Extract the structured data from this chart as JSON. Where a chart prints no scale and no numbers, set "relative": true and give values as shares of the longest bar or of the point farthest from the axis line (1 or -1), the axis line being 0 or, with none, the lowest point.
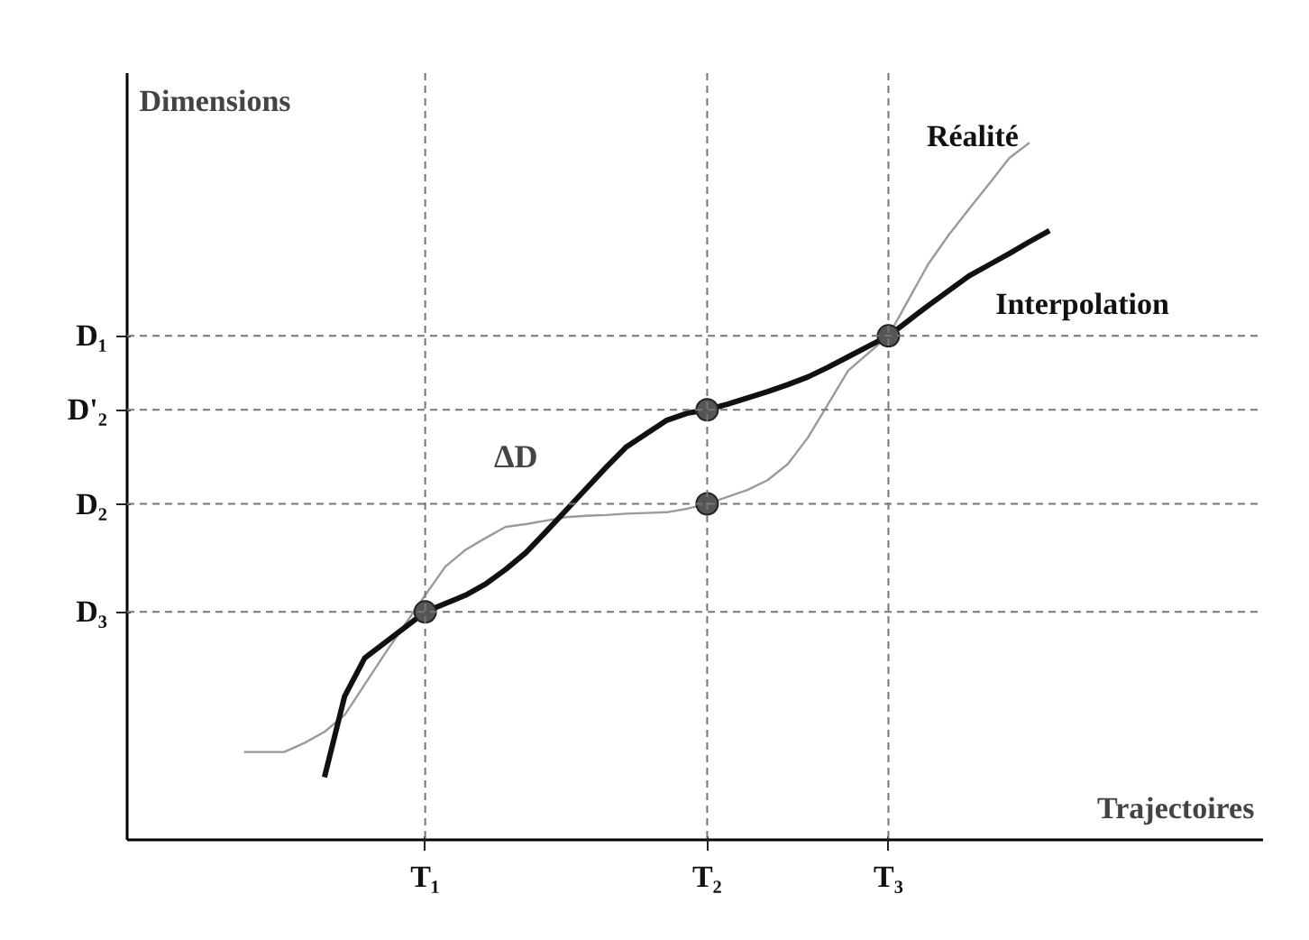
{
  "chart_data": {
    "type": "line",
    "relative": true,
    "xlabel": "Trajectoires",
    "ylabel": "Dimensions",
    "categories": [
      null,
      null,
      null,
      null,
      null,
      null,
      null,
      null,
      null,
      null,
      "T₁",
      null,
      null,
      null,
      null,
      null,
      null,
      null,
      null,
      null,
      null,
      null,
      null,
      null,
      "T₂",
      null,
      null,
      null,
      null,
      null,
      null,
      null,
      null,
      "T₃",
      null,
      null,
      null,
      null,
      null,
      null,
      null,
      null,
      null
    ],
    "series": [
      {
        "name": "Réalité",
        "color": "#9a9a9a",
        "values": [
          null,
          0.126,
          0.126,
          0.126,
          0.139,
          0.155,
          0.179,
          0.223,
          0.267,
          0.309,
          0.351,
          0.392,
          0.416,
          0.433,
          0.449,
          0.453,
          0.458,
          0.463,
          0.465,
          0.466,
          0.468,
          0.469,
          0.47,
          0.475,
          0.482,
          0.492,
          0.502,
          0.516,
          0.539,
          0.577,
          0.625,
          0.673,
          0.698,
          0.723,
          0.775,
          0.827,
          0.868,
          0.905,
          0.941,
          0.978,
          1.0,
          null,
          null
        ]
      },
      {
        "name": "Interpolation",
        "color": "#111111",
        "values": [
          null,
          null,
          null,
          null,
          null,
          0.09,
          0.206,
          0.261,
          0.283,
          0.305,
          0.327,
          0.339,
          0.351,
          0.367,
          0.388,
          0.412,
          0.442,
          0.473,
          0.504,
          0.535,
          0.564,
          0.583,
          0.602,
          0.612,
          0.617,
          0.625,
          0.634,
          0.643,
          0.653,
          0.664,
          0.678,
          0.693,
          0.708,
          0.723,
          0.745,
          0.767,
          0.788,
          0.809,
          0.825,
          0.841,
          0.858,
          0.874,
          null
        ]
      },
      {
        "type": "scatter",
        "marker": "circle",
        "color": "#555555",
        "x": [
          "T₁",
          "T₂",
          "T₂",
          "T₃"
        ],
        "values": [
          0.327,
          0.617,
          0.482,
          0.723
        ]
      }
    ],
    "ref_lines": [
      {
        "axis": "y",
        "value": 0.723,
        "label": "D₁",
        "line_style": "dashed"
      },
      {
        "axis": "y",
        "value": 0.617,
        "label": "D'₂",
        "line_style": "dashed"
      },
      {
        "axis": "y",
        "value": 0.482,
        "label": "D₂",
        "line_style": "dashed"
      },
      {
        "axis": "y",
        "value": 0.327,
        "label": "D₃",
        "line_style": "dashed"
      },
      {
        "axis": "x",
        "value": "T₁",
        "line_style": "dashed"
      },
      {
        "axis": "x",
        "value": "T₂",
        "line_style": "dashed"
      },
      {
        "axis": "x",
        "value": "T₃",
        "line_style": "dashed"
      }
    ],
    "annotations": [
      "ΔD"
    ]
  }
}
